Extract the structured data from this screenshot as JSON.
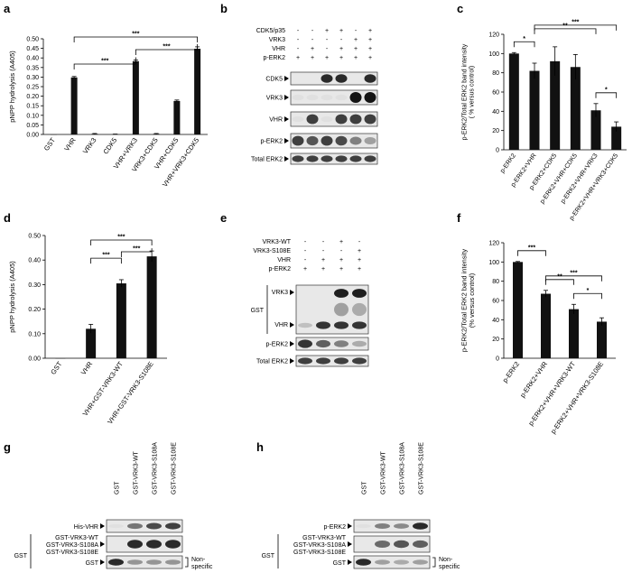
{
  "panel_letters": [
    "a",
    "b",
    "c",
    "d",
    "e",
    "f",
    "g",
    "h"
  ],
  "chart_data": [
    {
      "id": "a",
      "type": "bar",
      "ylabel": "pNPP hydrolysis (A405)",
      "ylim": [
        0,
        0.5
      ],
      "yticks": [
        "0.00",
        "0.05",
        "0.10",
        "0.15",
        "0.20",
        "0.25",
        "0.30",
        "0.35",
        "0.40",
        "0.45",
        "0.50"
      ],
      "categories": [
        "GST",
        "VHR",
        "VRK3",
        "CDK5",
        "VHR+VRK3",
        "VRK3+CDK5",
        "VHR+CDK5",
        "VHR+VRK3+CDK5"
      ],
      "values": [
        0.0,
        0.298,
        0.003,
        0.001,
        0.383,
        0.003,
        0.175,
        0.448
      ],
      "errors": [
        0.0,
        0.005,
        0.002,
        0.001,
        0.006,
        0.002,
        0.005,
        0.01
      ],
      "significance": [
        {
          "from": 1,
          "to": 4,
          "label": "***"
        },
        {
          "from": 1,
          "to": 7,
          "label": "***"
        },
        {
          "from": 4,
          "to": 7,
          "label": "***"
        }
      ]
    },
    {
      "id": "c",
      "type": "bar",
      "ylabel": "p-ERK2/Total ERK2 band intensity ( % versus control)",
      "ylim": [
        0,
        120
      ],
      "yticks": [
        "0",
        "20",
        "40",
        "60",
        "80",
        "100",
        "120"
      ],
      "categories": [
        "p-ERK2",
        "p-ERK2+VHR",
        "p-ERK2+CDK5",
        "p-ERK2+VHR+CDK5",
        "p-ERK2+VHR+VRK3",
        "p-ERK2+VHR+VRK3+CDK5"
      ],
      "values": [
        100,
        82,
        92,
        86,
        41,
        24
      ],
      "errors": [
        1,
        8,
        15,
        13,
        7,
        5
      ],
      "significance": [
        {
          "from": 0,
          "to": 1,
          "label": "*"
        },
        {
          "from": 1,
          "to": 4,
          "label": "**"
        },
        {
          "from": 1,
          "to": 5,
          "label": "***"
        },
        {
          "from": 4,
          "to": 5,
          "label": "*"
        }
      ]
    },
    {
      "id": "d",
      "type": "bar",
      "ylabel": "pNPP hydrolysis (A405)",
      "ylim": [
        0,
        0.5
      ],
      "yticks": [
        "0.00",
        "0.10",
        "0.20",
        "0.30",
        "0.40",
        "0.50"
      ],
      "categories": [
        "GST",
        "VHR",
        "VHR+GST-VRK3-WT",
        "VHR+GST-VRK3-S108E"
      ],
      "values": [
        0.0,
        0.12,
        0.305,
        0.415
      ],
      "errors": [
        0.0,
        0.018,
        0.015,
        0.022
      ],
      "significance": [
        {
          "from": 1,
          "to": 2,
          "label": "***"
        },
        {
          "from": 1,
          "to": 3,
          "label": "***"
        },
        {
          "from": 2,
          "to": 3,
          "label": "***"
        }
      ]
    },
    {
      "id": "f",
      "type": "bar",
      "ylabel": "p-ERK2/Total ERK2 band intensity (% versus control)",
      "ylim": [
        0,
        120
      ],
      "yticks": [
        "0",
        "20",
        "40",
        "60",
        "80",
        "100",
        "120"
      ],
      "categories": [
        "p-ERK2",
        "p-ERK2+VHR",
        "p-ERK2+VHR+VRK3-WT",
        "p-ERK2+VHR+VRK3-S108E"
      ],
      "values": [
        100,
        67,
        51,
        38
      ],
      "errors": [
        0.5,
        3.5,
        5,
        4
      ],
      "significance": [
        {
          "from": 0,
          "to": 1,
          "label": "***"
        },
        {
          "from": 1,
          "to": 2,
          "label": "**"
        },
        {
          "from": 1,
          "to": 3,
          "label": "***"
        },
        {
          "from": 2,
          "to": 3,
          "label": "*"
        }
      ]
    }
  ],
  "blots": {
    "b": {
      "conditions": [
        {
          "label": "CDK5/p35",
          "signs": [
            "-",
            "-",
            "+",
            "+",
            "-",
            "+"
          ]
        },
        {
          "label": "VRK3",
          "signs": [
            "-",
            "-",
            "-",
            "-",
            "+",
            "+"
          ]
        },
        {
          "label": "VHR",
          "signs": [
            "-",
            "+",
            "-",
            "+",
            "+",
            "+"
          ]
        },
        {
          "label": "p-ERK2",
          "signs": [
            "+",
            "+",
            "+",
            "+",
            "+",
            "+"
          ]
        }
      ],
      "rows": [
        {
          "label": "CDK5",
          "arrow": true,
          "bands": [
            0.02,
            0.02,
            0.9,
            0.9,
            0.02,
            0.9
          ]
        },
        {
          "label": "VRK3",
          "arrow": true,
          "bands": [
            0.05,
            0.05,
            0.05,
            0.05,
            1,
            1
          ]
        },
        {
          "label": "VHR",
          "arrow": true,
          "bands": [
            0.05,
            0.8,
            0.05,
            0.8,
            0.8,
            0.8
          ]
        },
        {
          "label": "p-ERK2",
          "arrow": true,
          "bands": [
            0.8,
            0.7,
            0.8,
            0.75,
            0.5,
            0.35
          ]
        },
        {
          "label": "Total ERK2",
          "arrow": true,
          "bands": [
            0.8,
            0.8,
            0.8,
            0.8,
            0.8,
            0.8
          ]
        }
      ]
    },
    "e": {
      "conditions": [
        {
          "label": "VRK3-WT",
          "signs": [
            "-",
            "-",
            "+",
            "-"
          ]
        },
        {
          "label": "VRK3-S108E",
          "signs": [
            "-",
            "-",
            "-",
            "+"
          ]
        },
        {
          "label": "VHR",
          "signs": [
            "-",
            "+",
            "+",
            "+"
          ]
        },
        {
          "label": "p-ERK2",
          "signs": [
            "+",
            "+",
            "+",
            "+"
          ]
        }
      ],
      "group_label": "GST",
      "gst_rows": [
        "VRK3",
        "VHR"
      ],
      "rows": [
        {
          "label": "p-ERK2",
          "arrow": true,
          "bands": [
            0.85,
            0.65,
            0.5,
            0.3
          ]
        },
        {
          "label": "Total ERK2",
          "arrow": true,
          "bands": [
            0.8,
            0.8,
            0.8,
            0.8
          ]
        }
      ]
    },
    "g": {
      "lanes": [
        "GST",
        "GST-VRK3-WT",
        "GST-VRK3-S108A",
        "GST-VRK3-S108E"
      ],
      "group_label": "GST",
      "nonspecific": "Non-specific",
      "rows": [
        {
          "label": "His-VHR",
          "bands": [
            0.05,
            0.55,
            0.75,
            0.8
          ]
        },
        {
          "label": "GST-VRK3-WT",
          "bands": []
        },
        {
          "label": "GST-VRK3-S108A",
          "bands": [
            0.02,
            0.9,
            0.9,
            0.9
          ]
        },
        {
          "label": "GST-VRK3-S108E",
          "bands": []
        },
        {
          "label": "GST",
          "bands": [
            0.9,
            0.4,
            0.4,
            0.4
          ]
        }
      ]
    },
    "h": {
      "lanes": [
        "GST",
        "GST-VRK3-WT",
        "GST-VRK3-S108A",
        "GST-VRK3-S108E"
      ],
      "group_label": "GST",
      "nonspecific": "Non-specific",
      "rows": [
        {
          "label": "p-ERK2",
          "bands": [
            0.05,
            0.5,
            0.45,
            0.9
          ]
        },
        {
          "label": "GST-VRK3-WT",
          "bands": []
        },
        {
          "label": "GST-VRK3-S108A",
          "bands": [
            0.02,
            0.6,
            0.7,
            0.65
          ]
        },
        {
          "label": "GST-VRK3-S108E",
          "bands": []
        },
        {
          "label": "GST",
          "bands": [
            0.9,
            0.35,
            0.3,
            0.35
          ]
        }
      ]
    }
  }
}
